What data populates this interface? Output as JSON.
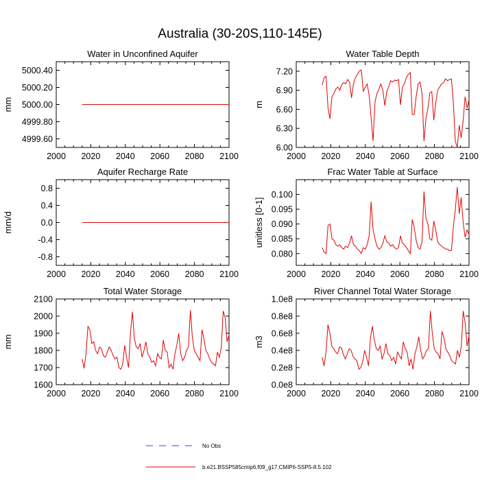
{
  "figure": {
    "title": "Australia (30-20S,110-145E)"
  },
  "legend": {
    "items": [
      {
        "label": "No Obs",
        "color": "#3b3bd6",
        "dashed": true
      },
      {
        "label": "b.e21.BSSP585cmip6.f09_g17.CMIP6-SSP5-8.5.102",
        "color": "#e00000",
        "dashed": false
      }
    ]
  },
  "chart_data": [
    {
      "type": "line",
      "title": "Water in Unconfined Aquifer",
      "ylabel": "mm",
      "xlim": [
        2000,
        2100
      ],
      "ylim": [
        4999.5,
        5000.5
      ],
      "xticks": [
        2000,
        2020,
        2040,
        2060,
        2080,
        2100
      ],
      "yticks": [
        4999.6,
        4999.8,
        5000.0,
        5000.2,
        5000.4
      ],
      "ytick_labels": [
        "4999.60",
        "4999.80",
        "5000.00",
        "5000.20",
        "5000.40"
      ],
      "series": [
        {
          "color": "#e00000",
          "x_start": 2015,
          "x_end": 2100,
          "values": [
            5000,
            5000
          ]
        }
      ]
    },
    {
      "type": "line",
      "title": "Water Table Depth",
      "ylabel": "m",
      "xlim": [
        2000,
        2100
      ],
      "ylim": [
        6.0,
        7.35
      ],
      "xticks": [
        2000,
        2020,
        2040,
        2060,
        2080,
        2100
      ],
      "yticks": [
        6.0,
        6.3,
        6.6,
        6.9,
        7.2
      ],
      "ytick_labels": [
        "6.00",
        "6.30",
        "6.60",
        "6.90",
        "7.20"
      ],
      "series": [
        {
          "color": "#e00000",
          "x_start": 2015,
          "x_end": 2100,
          "values": [
            6.98,
            7.1,
            7.12,
            6.62,
            6.45,
            6.8,
            6.85,
            6.92,
            6.95,
            6.9,
            6.99,
            7.02,
            7.0,
            7.07,
            7.03,
            6.78,
            7.0,
            7.1,
            7.15,
            7.2,
            7.22,
            6.88,
            6.95,
            7.0,
            6.82,
            6.47,
            6.1,
            6.72,
            6.85,
            6.92,
            7.0,
            6.9,
            6.66,
            6.88,
            6.96,
            7.05,
            7.03,
            7.06,
            7.05,
            7.07,
            6.67,
            6.95,
            7.0,
            7.1,
            7.15,
            7.18,
            6.52,
            6.52,
            6.8,
            7.0,
            7.03,
            6.85,
            6.1,
            6.45,
            6.62,
            6.86,
            6.88,
            6.43,
            6.7,
            6.9,
            6.95,
            7.0,
            7.02,
            7.08,
            7.05,
            7.07,
            7.08,
            6.7,
            6.1,
            6.0,
            6.35,
            6.15,
            6.42,
            6.8,
            6.62,
            6.75
          ]
        }
      ]
    },
    {
      "type": "line",
      "title": "Aquifer Recharge Rate",
      "ylabel": "mm/d",
      "xlim": [
        2000,
        2100
      ],
      "ylim": [
        -1.0,
        1.0
      ],
      "xticks": [
        2000,
        2020,
        2040,
        2060,
        2080,
        2100
      ],
      "yticks": [
        -0.8,
        -0.4,
        0.0,
        0.4,
        0.8
      ],
      "ytick_labels": [
        "-0.8",
        "-0.4",
        "0.0",
        "0.4",
        "0.8"
      ],
      "series": [
        {
          "color": "#e00000",
          "x_start": 2015,
          "x_end": 2100,
          "values": [
            0,
            0
          ]
        }
      ]
    },
    {
      "type": "line",
      "title": "Frac Water Table at Surface",
      "ylabel": "unitless [0-1]",
      "xlim": [
        2000,
        2100
      ],
      "ylim": [
        0.076,
        0.105
      ],
      "xticks": [
        2000,
        2020,
        2040,
        2060,
        2080,
        2100
      ],
      "yticks": [
        0.08,
        0.085,
        0.09,
        0.095,
        0.1
      ],
      "ytick_labels": [
        "0.080",
        "0.085",
        "0.090",
        "0.095",
        "0.100"
      ],
      "series": [
        {
          "color": "#e00000",
          "x_start": 2015,
          "x_end": 2100,
          "values": [
            0.082,
            0.0805,
            0.08,
            0.0895,
            0.09,
            0.085,
            0.0845,
            0.083,
            0.0825,
            0.083,
            0.082,
            0.0815,
            0.0825,
            0.082,
            0.0835,
            0.086,
            0.083,
            0.0825,
            0.0815,
            0.081,
            0.08,
            0.082,
            0.0815,
            0.083,
            0.086,
            0.0975,
            0.088,
            0.085,
            0.0825,
            0.0815,
            0.082,
            0.0835,
            0.086,
            0.084,
            0.0835,
            0.0825,
            0.083,
            0.082,
            0.0815,
            0.082,
            0.086,
            0.0835,
            0.083,
            0.082,
            0.081,
            0.08,
            0.0915,
            0.089,
            0.0845,
            0.082,
            0.0815,
            0.084,
            0.101,
            0.092,
            0.09,
            0.085,
            0.0845,
            0.091,
            0.088,
            0.084,
            0.083,
            0.0825,
            0.082,
            0.0815,
            0.0815,
            0.081,
            0.081,
            0.089,
            0.095,
            0.1025,
            0.0935,
            0.099,
            0.0905,
            0.0855,
            0.088,
            0.0865
          ]
        }
      ]
    },
    {
      "type": "line",
      "title": "Total Water Storage",
      "ylabel": "mm",
      "xlim": [
        2000,
        2100
      ],
      "ylim": [
        1600,
        2100
      ],
      "xticks": [
        2000,
        2020,
        2040,
        2060,
        2080,
        2100
      ],
      "yticks": [
        1600,
        1700,
        1800,
        1900,
        2000,
        2100
      ],
      "ytick_labels": [
        "1600",
        "1700",
        "1800",
        "1900",
        "2000",
        "2100"
      ],
      "series": [
        {
          "color": "#e00000",
          "x_start": 2015,
          "x_end": 2100,
          "values": [
            1750,
            1695,
            1780,
            1940,
            1920,
            1840,
            1850,
            1800,
            1780,
            1820,
            1810,
            1770,
            1760,
            1790,
            1820,
            1800,
            1770,
            1750,
            1760,
            1700,
            1690,
            1720,
            1830,
            1760,
            1700,
            1900,
            2025,
            1870,
            1820,
            1810,
            1840,
            1760,
            1800,
            1850,
            1780,
            1760,
            1730,
            1740,
            1710,
            1780,
            1760,
            1750,
            1860,
            1800,
            1790,
            1700,
            1720,
            1690,
            1780,
            1830,
            1900,
            1780,
            1740,
            1760,
            1800,
            1820,
            2035,
            1880,
            1800,
            1780,
            1760,
            1740,
            1920,
            1870,
            1800,
            1780,
            1750,
            1730,
            1720,
            1710,
            1790,
            1760,
            1820,
            2030,
            1990,
            1850,
            1890
          ]
        }
      ]
    },
    {
      "type": "line",
      "title": "River Channel Total Water Storage",
      "ylabel": "m3",
      "xlim": [
        2000,
        2100
      ],
      "ylim": [
        0,
        100000000.0
      ],
      "xticks": [
        2000,
        2020,
        2040,
        2060,
        2080,
        2100
      ],
      "yticks": [
        0,
        20000000.0,
        40000000.0,
        60000000.0,
        80000000.0,
        100000000.0
      ],
      "ytick_labels": [
        "0.0e8",
        "0.2e8",
        "0.4e8",
        "0.6e8",
        "0.8e8",
        "1.0e8"
      ],
      "series": [
        {
          "color": "#e00000",
          "x_start": 2015,
          "x_end": 2100,
          "values": [
            32000000.0,
            22000000.0,
            38000000.0,
            70000000.0,
            60000000.0,
            45000000.0,
            42000000.0,
            38000000.0,
            36000000.0,
            44000000.0,
            43000000.0,
            35000000.0,
            30000000.0,
            36000000.0,
            42000000.0,
            40000000.0,
            33000000.0,
            30000000.0,
            28000000.0,
            18000000.0,
            20000000.0,
            27000000.0,
            40000000.0,
            32000000.0,
            22000000.0,
            55000000.0,
            68000000.0,
            52000000.0,
            42000000.0,
            40000000.0,
            45000000.0,
            30000000.0,
            36000000.0,
            48000000.0,
            36000000.0,
            34000000.0,
            28000000.0,
            32000000.0,
            24000000.0,
            38000000.0,
            34000000.0,
            30000000.0,
            50000000.0,
            42000000.0,
            38000000.0,
            22000000.0,
            30000000.0,
            18000000.0,
            36000000.0,
            44000000.0,
            56000000.0,
            40000000.0,
            30000000.0,
            34000000.0,
            40000000.0,
            42000000.0,
            86000000.0,
            60000000.0,
            42000000.0,
            38000000.0,
            36000000.0,
            30000000.0,
            62000000.0,
            55000000.0,
            42000000.0,
            38000000.0,
            34000000.0,
            28000000.0,
            26000000.0,
            24000000.0,
            40000000.0,
            32000000.0,
            45000000.0,
            86000000.0,
            72000000.0,
            45000000.0,
            57000000.0
          ]
        }
      ]
    }
  ]
}
